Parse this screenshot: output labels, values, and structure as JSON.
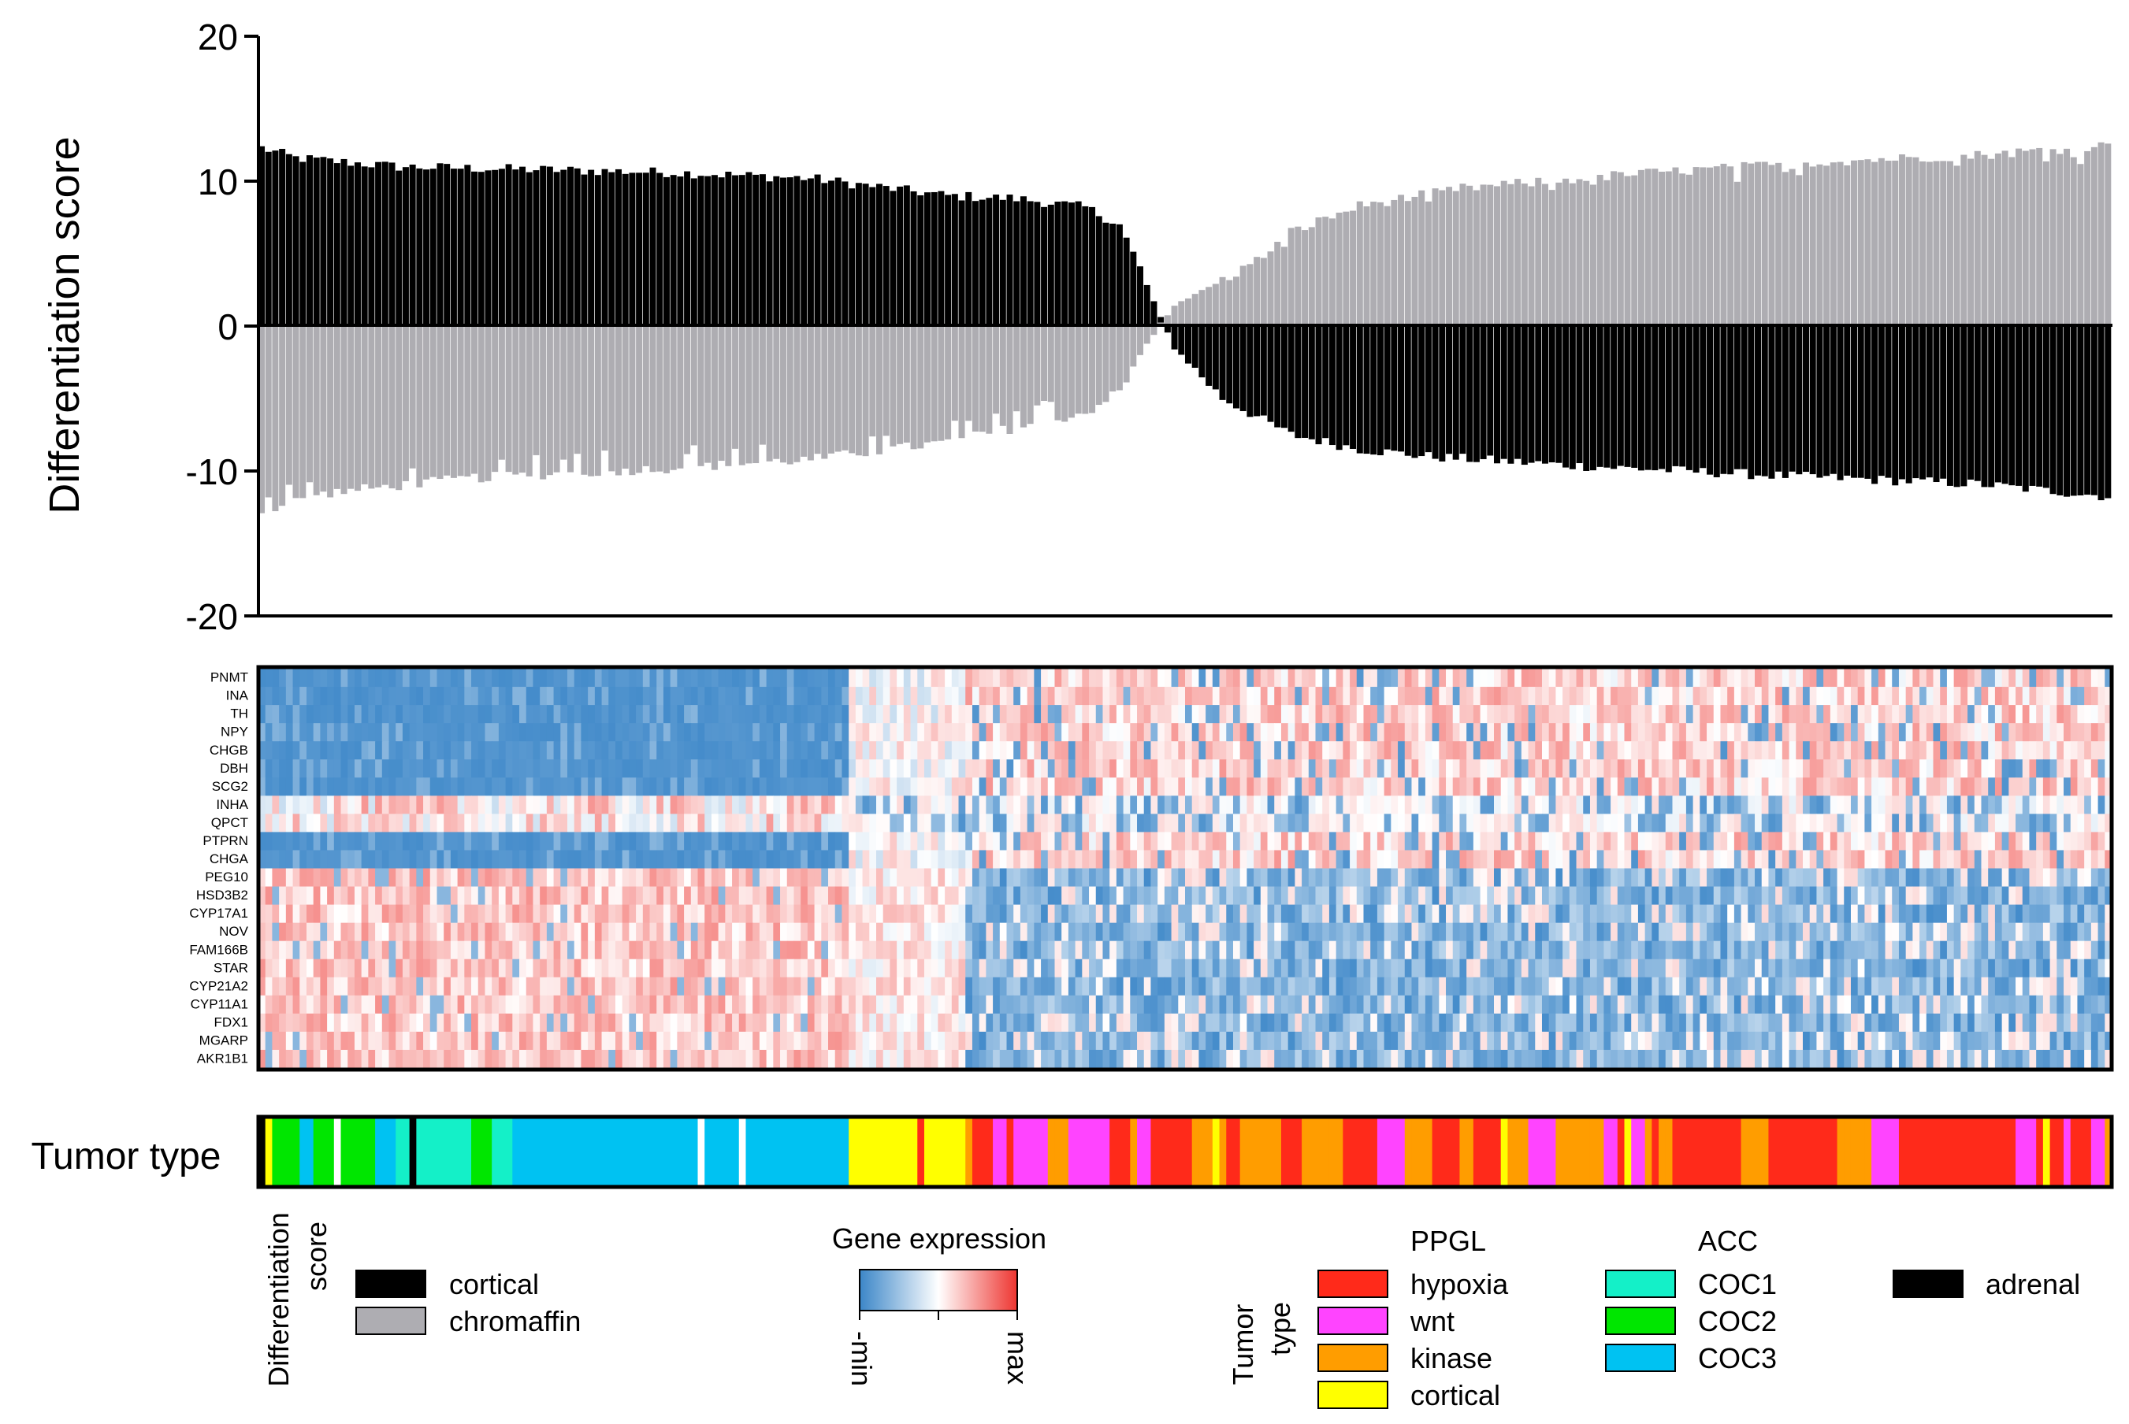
{
  "chart_data": [
    {
      "type": "bar",
      "chart": "differentiation-score",
      "ylabel": "Differentiation score",
      "xlabel": "",
      "ylim": [
        -20,
        20
      ],
      "yticks": [
        20,
        10,
        0,
        -10,
        -20
      ],
      "ytick_labels": [
        "20",
        "10",
        "0",
        "-10",
        "-20"
      ],
      "grid": false,
      "n_samples": 270,
      "series": [
        {
          "name": "cortical",
          "color": "#000000",
          "description": "cortical score per sample (positive for left ACC samples, then decreasing to about -11.7)",
          "anchors": [
            [
              0,
              12.3
            ],
            [
              5,
              11.6
            ],
            [
              20,
              11.0
            ],
            [
              60,
              10.6
            ],
            [
              80,
              10.2
            ],
            [
              100,
              9.0
            ],
            [
              110,
              8.8
            ],
            [
              120,
              8.2
            ],
            [
              125,
              7.0
            ],
            [
              128,
              4.0
            ],
            [
              131,
              0.5
            ],
            [
              133,
              -1.5
            ],
            [
              136,
              -3.0
            ],
            [
              140,
              -5.0
            ],
            [
              150,
              -7.5
            ],
            [
              160,
              -8.5
            ],
            [
              170,
              -9.0
            ],
            [
              190,
              -9.6
            ],
            [
              220,
              -10.3
            ],
            [
              250,
              -10.9
            ],
            [
              270,
              -11.8
            ]
          ]
        },
        {
          "name": "chromaffin",
          "color": "#aeadb2",
          "description": "chromaffin score per sample (negative for left ACC samples, then increasing to about 12.5)",
          "anchors": [
            [
              0,
              -13.0
            ],
            [
              4,
              -12.2
            ],
            [
              10,
              -11.5
            ],
            [
              30,
              -10.5
            ],
            [
              60,
              -9.8
            ],
            [
              80,
              -9.2
            ],
            [
              100,
              -8.0
            ],
            [
              120,
              -6.0
            ],
            [
              125,
              -4.5
            ],
            [
              128,
              -2.0
            ],
            [
              131,
              0.3
            ],
            [
              134,
              1.8
            ],
            [
              138,
              2.6
            ],
            [
              145,
              4.5
            ],
            [
              150,
              6.5
            ],
            [
              160,
              8.3
            ],
            [
              175,
              9.5
            ],
            [
              200,
              10.5
            ],
            [
              230,
              11.4
            ],
            [
              250,
              11.8
            ],
            [
              270,
              12.5
            ]
          ]
        }
      ],
      "gaps_at": [
        0,
        22
      ]
    },
    {
      "type": "heatmap",
      "chart": "gene-expression",
      "rows": [
        "PNMT",
        "INA",
        "TH",
        "NPY",
        "CHGB",
        "DBH",
        "SCG2",
        "INHA",
        "QPCT",
        "PTPRN",
        "CHGA",
        "PEG10",
        "HSD3B2",
        "CYP17A1",
        "NOV",
        "FAM166B",
        "STAR",
        "CYP21A2",
        "CYP11A1",
        "FDX1",
        "MGARP",
        "AKR1B1"
      ],
      "row_groups": {
        "chromaffin_genes": [
          "PNMT",
          "INA",
          "TH",
          "NPY",
          "CHGB",
          "DBH",
          "SCG2",
          "PTPRN",
          "CHGA"
        ],
        "mixed_genes": [
          "INHA",
          "QPCT"
        ],
        "cortical_genes": [
          "PEG10",
          "HSD3B2",
          "CYP17A1",
          "NOV",
          "FAM166B",
          "STAR",
          "CYP21A2",
          "CYP11A1",
          "FDX1",
          "MGARP",
          "AKR1B1"
        ]
      },
      "n_columns": 270,
      "column_blocks": [
        {
          "range": [
            0,
            85
          ],
          "note": "ACC samples: chromaffin genes at min (blue), cortical genes high (red)"
        },
        {
          "range": [
            86,
            102
          ],
          "note": "transition / cortical PPGL: mixed, light"
        },
        {
          "range": [
            103,
            269
          ],
          "note": "PPGL samples: chromaffin genes high, cortical genes low (blue)"
        }
      ],
      "colorscale": {
        "min_label": "-min",
        "max_label": "max",
        "min_color": "#3b86c8",
        "mid_color": "#ffffff",
        "max_color": "#ee3530"
      },
      "values_note": "cell values are estimated visual intensities in [-1, 1]"
    },
    {
      "type": "table",
      "chart": "tumor-type-strip",
      "label": "Tumor type",
      "n_columns": 270,
      "segments": [
        {
          "range": [
            0,
            0
          ],
          "type": "adrenal"
        },
        {
          "range": [
            1,
            1
          ],
          "type": "cortical"
        },
        {
          "range": [
            2,
            10
          ],
          "type": "mix-acc"
        },
        {
          "range": [
            11,
            11
          ],
          "type": "gap"
        },
        {
          "range": [
            12,
            21
          ],
          "type": "mix-acc"
        },
        {
          "range": [
            22,
            22
          ],
          "type": "adrenal"
        },
        {
          "range": [
            23,
            63
          ],
          "type": "mix-acc"
        },
        {
          "range": [
            64,
            64
          ],
          "type": "gap"
        },
        {
          "range": [
            65,
            69
          ],
          "type": "mix-acc"
        },
        {
          "range": [
            70,
            70
          ],
          "type": "gap"
        },
        {
          "range": [
            71,
            85
          ],
          "type": "COC3"
        },
        {
          "range": [
            86,
            95
          ],
          "type": "cortical"
        },
        {
          "range": [
            96,
            96
          ],
          "type": "hypoxia"
        },
        {
          "range": [
            97,
            102
          ],
          "type": "cortical"
        },
        {
          "range": [
            103,
            269
          ],
          "type": "ppgl-mix"
        }
      ]
    }
  ],
  "legend": {
    "score": {
      "title_line1": "Differentiation",
      "title_line2": "score",
      "items": [
        {
          "label": "cortical",
          "color": "#000000"
        },
        {
          "label": "chromaffin",
          "color": "#aeadb2"
        }
      ]
    },
    "expression": {
      "title": "Gene expression",
      "min_label": "-min",
      "max_label": "max"
    },
    "tumor": {
      "title_line1": "Tumor",
      "title_line2": "type",
      "ppgl_header": "PPGL",
      "acc_header": "ACC",
      "ppgl_items": [
        {
          "label": "hypoxia",
          "color": "#ff2a1a"
        },
        {
          "label": "wnt",
          "color": "#ff44ff"
        },
        {
          "label": "kinase",
          "color": "#ff9d00"
        },
        {
          "label": "cortical",
          "color": "#ffff00"
        }
      ],
      "acc_items": [
        {
          "label": "COC1",
          "color": "#14f0c8"
        },
        {
          "label": "COC2",
          "color": "#00e600"
        },
        {
          "label": "COC3",
          "color": "#00c2f2"
        }
      ],
      "other_items": [
        {
          "label": "adrenal",
          "color": "#000000"
        }
      ]
    }
  },
  "colors": {
    "cortical": "#000000",
    "chromaffin": "#aeadb2",
    "hypoxia": "#ff2a1a",
    "wnt": "#ff44ff",
    "kinase": "#ff9d00",
    "cortical_type": "#ffff00",
    "COC1": "#14f0c8",
    "COC2": "#00e600",
    "COC3": "#00c2f2",
    "adrenal": "#000000"
  }
}
